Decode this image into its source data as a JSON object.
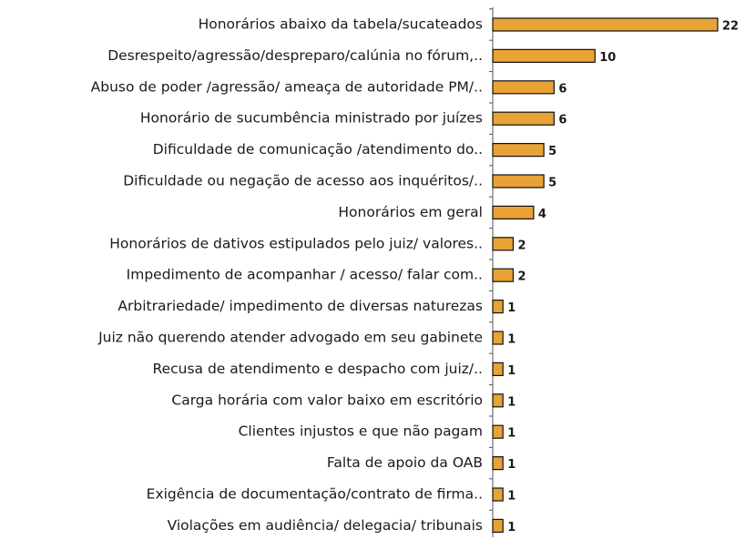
{
  "chart_data": {
    "type": "bar",
    "orientation": "horizontal",
    "color": "#e8a236",
    "categories": [
      "Honorários abaixo da tabela/sucateados",
      "Desrespeito/agressão/despreparo/calúnia no fórum,..",
      "Abuso de poder /agressão/ ameaça de autoridade PM/..",
      "Honorário de sucumbência ministrado por juízes",
      "Dificuldade de comunicação /atendimento do..",
      "Dificuldade ou negação de acesso aos inquéritos/..",
      "Honorários em geral",
      "Honorários de dativos estipulados pelo juiz/ valores..",
      "Impedimento de acompanhar / acesso/ falar com..",
      "Arbitrariedade/ impedimento de diversas naturezas",
      "Juiz não querendo atender advogado em seu gabinete",
      "Recusa de atendimento e despacho com juiz/..",
      "Carga horária com valor baixo em escritório",
      "Clientes injustos e que não pagam",
      "Falta de apoio da OAB",
      "Exigência de documentação/contrato de firma..",
      "Violações em audiência/ delegacia/ tribunais"
    ],
    "values": [
      22,
      10,
      6,
      6,
      5,
      5,
      4,
      2,
      2,
      1,
      1,
      1,
      1,
      1,
      1,
      1,
      1
    ]
  }
}
